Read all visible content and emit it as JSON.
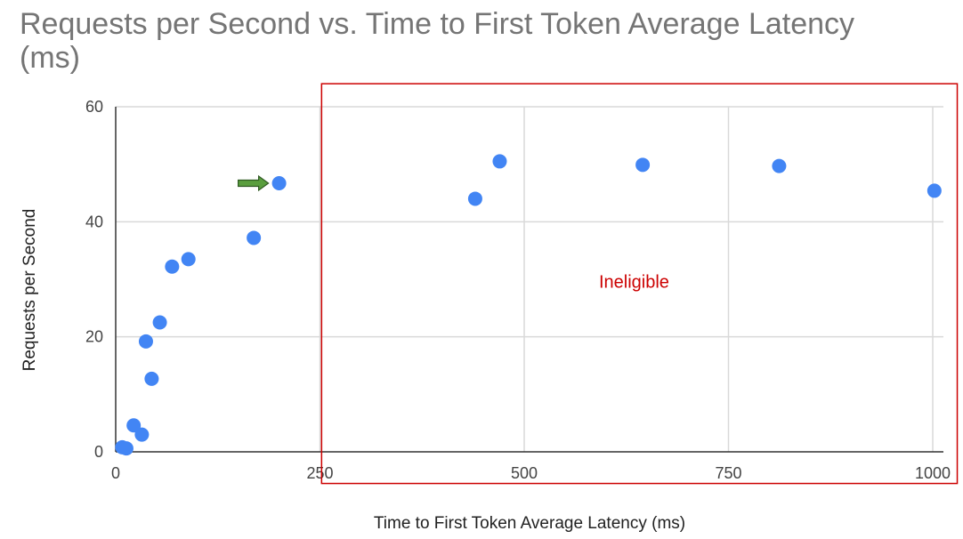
{
  "chart_data": {
    "type": "scatter",
    "title": "Requests per Second vs. Time to First Token Average Latency (ms)",
    "xlabel": "Time to First Token Average Latency (ms)",
    "ylabel": "Requests per Second",
    "xlim": [
      0,
      1000
    ],
    "ylim": [
      0,
      60
    ],
    "x_ticks": [
      0,
      250,
      500,
      750,
      1000
    ],
    "y_ticks": [
      0,
      20,
      40,
      60
    ],
    "grid": true,
    "legend": "none",
    "point_color": "#4285F4",
    "series": [
      {
        "points": [
          {
            "x": 8,
            "y": 0.8
          },
          {
            "x": 13,
            "y": 0.6
          },
          {
            "x": 22,
            "y": 4.6
          },
          {
            "x": 32,
            "y": 3.0
          },
          {
            "x": 37,
            "y": 19.2
          },
          {
            "x": 44,
            "y": 12.7
          },
          {
            "x": 54,
            "y": 22.5
          },
          {
            "x": 69,
            "y": 32.2
          },
          {
            "x": 89,
            "y": 33.5
          },
          {
            "x": 169,
            "y": 37.2
          },
          {
            "x": 200,
            "y": 46.7
          },
          {
            "x": 440,
            "y": 44.0
          },
          {
            "x": 470,
            "y": 50.5
          },
          {
            "x": 645,
            "y": 49.9
          },
          {
            "x": 812,
            "y": 49.7
          },
          {
            "x": 1002,
            "y": 45.4
          }
        ]
      }
    ],
    "annotations": {
      "region": {
        "label": "Ineligible",
        "x_from": 252,
        "x_to": 1030,
        "y_from": -5.5,
        "y_to": 64,
        "color": "#cc0000"
      },
      "arrow": {
        "target_x": 200,
        "target_y": 46.7,
        "color": "#5a9e3e"
      }
    }
  }
}
